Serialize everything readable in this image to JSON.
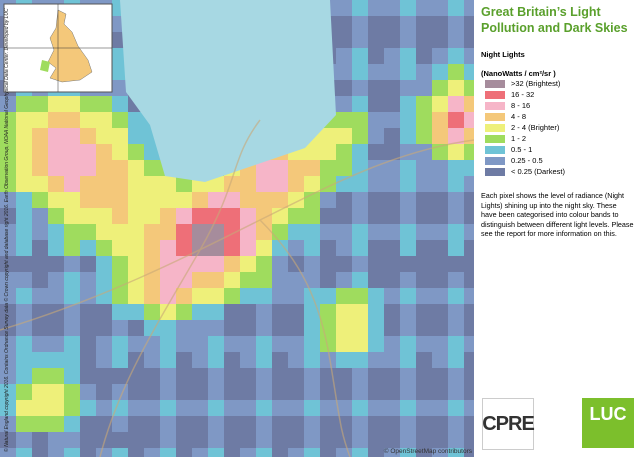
{
  "panel": {
    "title": "Great Britain’s Light Pollution and Dark Skies",
    "legend_title": "Night Lights",
    "unit": "(NanoWatts / cm²/sr )",
    "legend": [
      {
        "label": ">32 (Brightest)",
        "color": "#a68c9c"
      },
      {
        "label": "16 - 32",
        "color": "#ee6f78"
      },
      {
        "label": "8 - 16",
        "color": "#f6b5c8"
      },
      {
        "label": "4 - 8",
        "color": "#f4c87a"
      },
      {
        "label": "2 - 4 (Brighter)",
        "color": "#eef07a"
      },
      {
        "label": "1 - 2",
        "color": "#9fdc5e"
      },
      {
        "label": "0.5 - 1",
        "color": "#6fc3d6"
      },
      {
        "label": "0.25 - 0.5",
        "color": "#7f98c5"
      },
      {
        "label": "< 0.25 (Darkest)",
        "color": "#6e7ba4"
      }
    ],
    "description": "Each pixel shows the level of radiance (Night Lights) shining up into the night sky. These have been categorised into colour bands to distinguish between different light levels. Please see the report for more information on this."
  },
  "map": {
    "attribution": "© OpenStreetMap contributors",
    "copyright": "© Natural England copyright 2016. Contains Ordnance Survey data © Crown copyright and database right 2016. Earth Observation Group, NOAA National Geophysical Data Center. Developed by LUC"
  },
  "logos": {
    "cpre": "CPRE",
    "luc": "LUC"
  }
}
